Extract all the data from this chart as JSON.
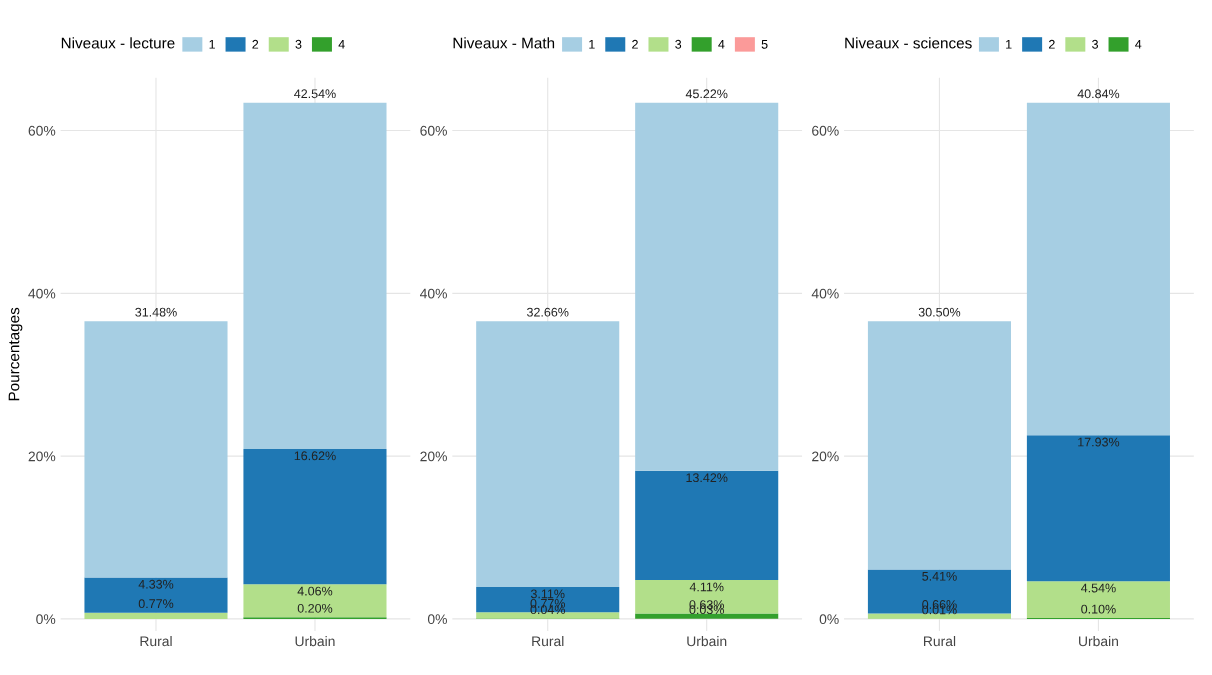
{
  "chart_data": [
    {
      "type": "bar",
      "stacked": true,
      "legend_title": "Niveaux - lecture",
      "legend": "top",
      "ylabel": "Pourcentages",
      "categories": [
        "Rural",
        "Urbain"
      ],
      "ylim": [
        -1.5,
        66.5
      ],
      "yticks": [
        {
          "value": 0,
          "label": "0%"
        },
        {
          "value": 20,
          "label": "20%"
        },
        {
          "value": 40,
          "label": "40%"
        },
        {
          "value": 60,
          "label": "60%"
        }
      ],
      "grid": true,
      "series": [
        {
          "name": "4",
          "color": "#33a02c",
          "values": [
            null,
            0.2
          ],
          "value_labels": [
            null,
            "0.20%"
          ]
        },
        {
          "name": "3",
          "color": "#b2df8a",
          "values": [
            0.77,
            4.06
          ],
          "value_labels": [
            "0.77%",
            "4.06%"
          ]
        },
        {
          "name": "2",
          "color": "#1f78b4",
          "values": [
            4.33,
            16.62
          ],
          "value_labels": [
            "4.33%",
            "16.62%"
          ]
        },
        {
          "name": "1",
          "color": "#a6cee3",
          "values": [
            31.48,
            42.54
          ],
          "value_labels": [
            "31.48%",
            "42.54%"
          ]
        }
      ]
    },
    {
      "type": "bar",
      "stacked": true,
      "legend_title": "Niveaux - Math",
      "legend": "top",
      "categories": [
        "Rural",
        "Urbain"
      ],
      "ylim": [
        -1.5,
        66.5
      ],
      "yticks": [
        {
          "value": 0,
          "label": "0%"
        },
        {
          "value": 20,
          "label": "20%"
        },
        {
          "value": 40,
          "label": "40%"
        },
        {
          "value": 60,
          "label": "60%"
        }
      ],
      "grid": true,
      "series": [
        {
          "name": "5",
          "color": "#fb9a99",
          "values": [
            null,
            0.03
          ],
          "value_labels": [
            null,
            "0.03%"
          ]
        },
        {
          "name": "4",
          "color": "#33a02c",
          "values": [
            0.04,
            0.63
          ],
          "value_labels": [
            "0.04%",
            "0.63%"
          ]
        },
        {
          "name": "3",
          "color": "#b2df8a",
          "values": [
            0.77,
            4.11
          ],
          "value_labels": [
            "0.77%",
            "4.11%"
          ]
        },
        {
          "name": "2",
          "color": "#1f78b4",
          "values": [
            3.11,
            13.42
          ],
          "value_labels": [
            "3.11%",
            "13.42%"
          ]
        },
        {
          "name": "1",
          "color": "#a6cee3",
          "values": [
            32.66,
            45.22
          ],
          "value_labels": [
            "32.66%",
            "45.22%"
          ]
        }
      ]
    },
    {
      "type": "bar",
      "stacked": true,
      "legend_title": "Niveaux - sciences",
      "legend": "top",
      "categories": [
        "Rural",
        "Urbain"
      ],
      "ylim": [
        -1.5,
        66.5
      ],
      "yticks": [
        {
          "value": 0,
          "label": "0%"
        },
        {
          "value": 20,
          "label": "20%"
        },
        {
          "value": 40,
          "label": "40%"
        },
        {
          "value": 60,
          "label": "60%"
        }
      ],
      "grid": true,
      "series": [
        {
          "name": "4",
          "color": "#33a02c",
          "values": [
            0.01,
            0.1
          ],
          "value_labels": [
            "0.01%",
            "0.10%"
          ]
        },
        {
          "name": "3",
          "color": "#b2df8a",
          "values": [
            0.66,
            4.54
          ],
          "value_labels": [
            "0.66%",
            "4.54%"
          ]
        },
        {
          "name": "2",
          "color": "#1f78b4",
          "values": [
            5.41,
            17.93
          ],
          "value_labels": [
            "5.41%",
            "17.93%"
          ]
        },
        {
          "name": "1",
          "color": "#a6cee3",
          "values": [
            30.5,
            40.84
          ],
          "value_labels": [
            "30.50%",
            "40.84%"
          ]
        }
      ]
    }
  ]
}
